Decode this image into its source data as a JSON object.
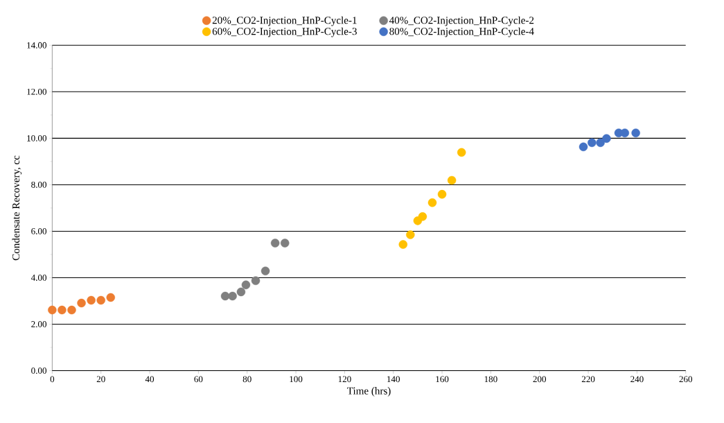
{
  "chart_data": {
    "type": "scatter",
    "xlabel": "Time (hrs)",
    "ylabel": "Condensate Recovery, cc",
    "xlim": [
      0,
      260
    ],
    "ylim": [
      0,
      14
    ],
    "xticks": [
      0,
      20,
      40,
      60,
      80,
      100,
      120,
      140,
      160,
      180,
      200,
      220,
      240,
      260
    ],
    "yticks": [
      {
        "value": 0,
        "label": "0.00"
      },
      {
        "value": 2,
        "label": "2.00"
      },
      {
        "value": 4,
        "label": "4.00"
      },
      {
        "value": 6,
        "label": "6.00"
      },
      {
        "value": 8,
        "label": "8.00"
      },
      {
        "value": 10,
        "label": "10.00"
      },
      {
        "value": 12,
        "label": "12.00"
      },
      {
        "value": 14,
        "label": "14.00"
      }
    ],
    "grid": "y",
    "legend": "top",
    "marker": "circle",
    "series": [
      {
        "name": "20%_CO2-Injection_HnP-Cycle-1",
        "color": "#ed7d31",
        "x": [
          0,
          4,
          8,
          12,
          16,
          20,
          24
        ],
        "values": [
          2.61,
          2.61,
          2.61,
          2.91,
          3.03,
          3.03,
          3.15
        ]
      },
      {
        "name": "40%_CO2-Injection_HnP-Cycle-2",
        "color": "#7f7f7f",
        "x": [
          71,
          74,
          77.5,
          79.5,
          83.5,
          87.5,
          91.5,
          95.5
        ],
        "values": [
          3.21,
          3.21,
          3.39,
          3.69,
          3.87,
          4.29,
          5.49,
          5.49
        ]
      },
      {
        "name": "60%_CO2-Injection_HnP-Cycle-3",
        "color": "#ffc000",
        "x": [
          144,
          147,
          150,
          152,
          156,
          160,
          164,
          168
        ],
        "values": [
          5.43,
          5.85,
          6.45,
          6.63,
          7.23,
          7.59,
          8.19,
          9.39
        ]
      },
      {
        "name": "80%_CO2-Injection_HnP-Cycle-4",
        "color": "#4472c4",
        "x": [
          218,
          221.5,
          225,
          227.5,
          232.5,
          235,
          239.5
        ],
        "values": [
          9.63,
          9.81,
          9.81,
          9.99,
          10.23,
          10.23,
          10.23
        ]
      }
    ]
  }
}
